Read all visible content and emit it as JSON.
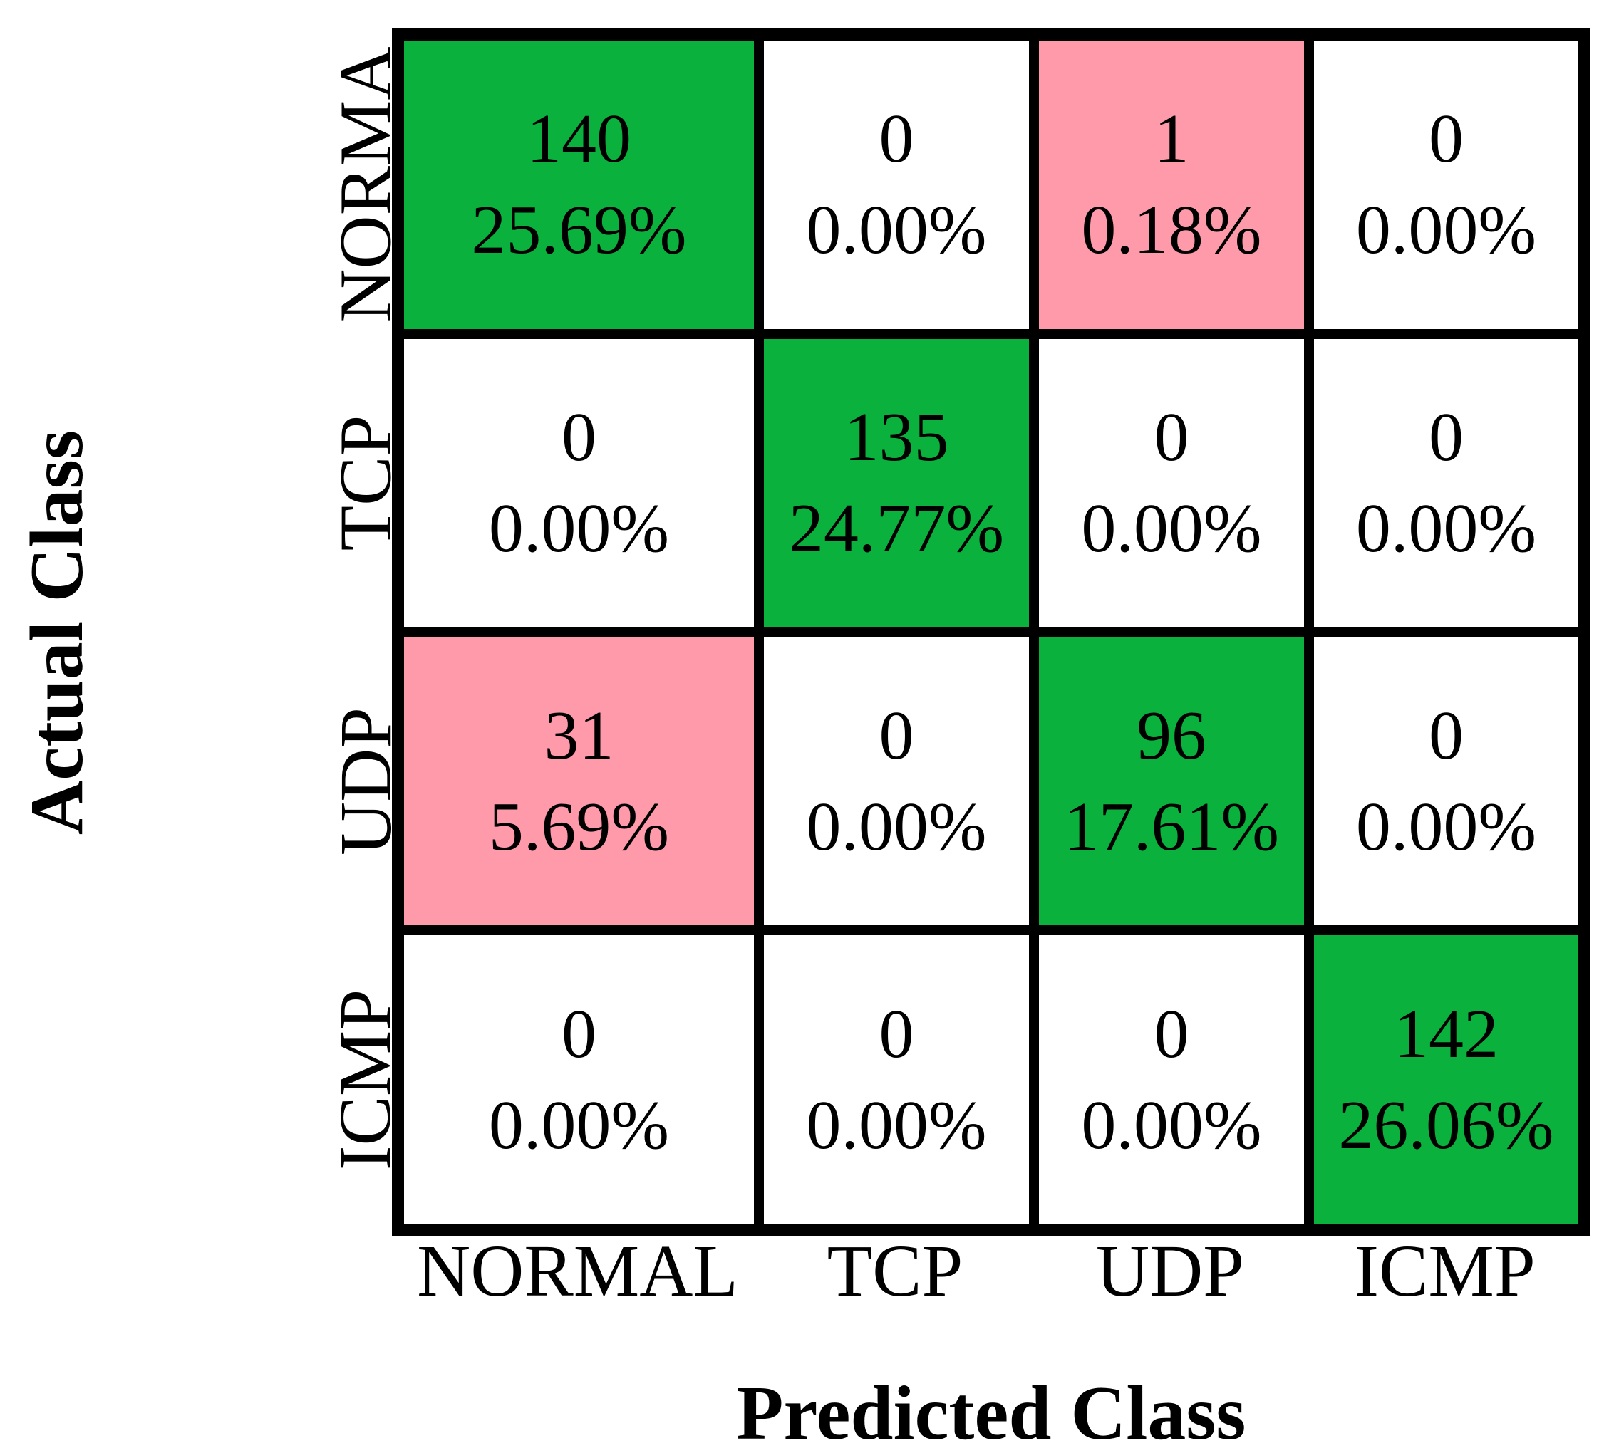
{
  "figure": {
    "y_axis_title": "Actual Class",
    "x_axis_title": "Predicted Class"
  },
  "colors": {
    "correct_cell_green": "#0AB13C",
    "error_cell_pink": "#FF9AAB",
    "zero_cell_white": "#FFFFFF",
    "grid_line_black": "#000000"
  },
  "chart_data": {
    "type": "heatmap",
    "subtype": "confusion-matrix",
    "x_label": "Predicted Class",
    "y_label": "Actual Class",
    "row_labels_displayed": [
      "NORMA",
      "TCP",
      "UDP",
      "ICMP"
    ],
    "col_labels": [
      "NORMAL",
      "TCP",
      "UDP",
      "ICMP"
    ],
    "matrix_counts": [
      [
        140,
        0,
        1,
        0
      ],
      [
        0,
        135,
        0,
        0
      ],
      [
        31,
        0,
        96,
        0
      ],
      [
        0,
        0,
        0,
        142
      ]
    ],
    "matrix_percents": [
      [
        "25.69%",
        "0.00%",
        "0.18%",
        "0.00%"
      ],
      [
        "0.00%",
        "24.77%",
        "0.00%",
        "0.00%"
      ],
      [
        "5.69%",
        "0.00%",
        "17.61%",
        "0.00%"
      ],
      [
        "0.00%",
        "0.00%",
        "0.00%",
        "26.06%"
      ]
    ],
    "cells": [
      {
        "row": "NORMA",
        "col": "NORMAL",
        "count": "140",
        "pct": "25.69%",
        "state": "correct"
      },
      {
        "row": "NORMA",
        "col": "TCP",
        "count": "0",
        "pct": "0.00%",
        "state": "zero"
      },
      {
        "row": "NORMA",
        "col": "UDP",
        "count": "1",
        "pct": "0.18%",
        "state": "error"
      },
      {
        "row": "NORMA",
        "col": "ICMP",
        "count": "0",
        "pct": "0.00%",
        "state": "zero"
      },
      {
        "row": "TCP",
        "col": "NORMAL",
        "count": "0",
        "pct": "0.00%",
        "state": "zero"
      },
      {
        "row": "TCP",
        "col": "TCP",
        "count": "135",
        "pct": "24.77%",
        "state": "correct"
      },
      {
        "row": "TCP",
        "col": "UDP",
        "count": "0",
        "pct": "0.00%",
        "state": "zero"
      },
      {
        "row": "TCP",
        "col": "ICMP",
        "count": "0",
        "pct": "0.00%",
        "state": "zero"
      },
      {
        "row": "UDP",
        "col": "NORMAL",
        "count": "31",
        "pct": "5.69%",
        "state": "error"
      },
      {
        "row": "UDP",
        "col": "TCP",
        "count": "0",
        "pct": "0.00%",
        "state": "zero"
      },
      {
        "row": "UDP",
        "col": "UDP",
        "count": "96",
        "pct": "17.61%",
        "state": "correct"
      },
      {
        "row": "UDP",
        "col": "ICMP",
        "count": "0",
        "pct": "0.00%",
        "state": "zero"
      },
      {
        "row": "ICMP",
        "col": "NORMAL",
        "count": "0",
        "pct": "0.00%",
        "state": "zero"
      },
      {
        "row": "ICMP",
        "col": "TCP",
        "count": "0",
        "pct": "0.00%",
        "state": "zero"
      },
      {
        "row": "ICMP",
        "col": "UDP",
        "count": "0",
        "pct": "0.00%",
        "state": "zero"
      },
      {
        "row": "ICMP",
        "col": "ICMP",
        "count": "142",
        "pct": "26.06%",
        "state": "correct"
      }
    ]
  }
}
